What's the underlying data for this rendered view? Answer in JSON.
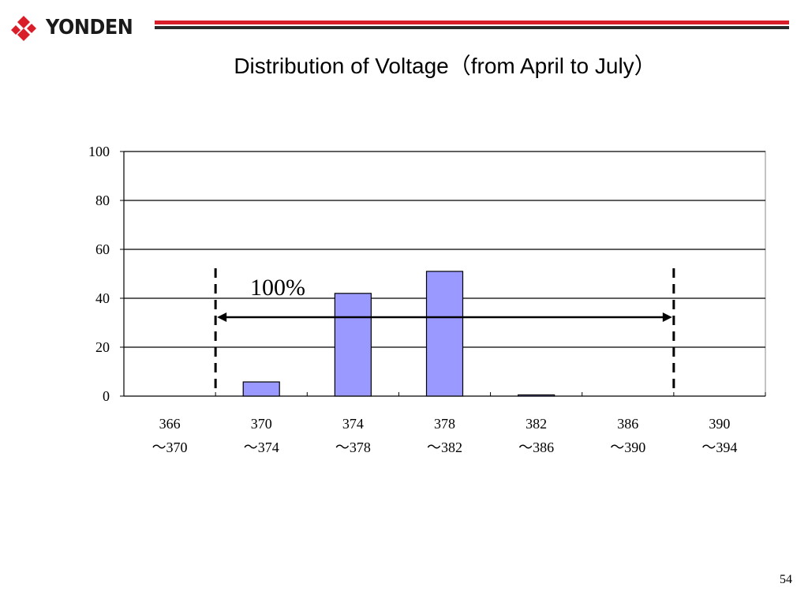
{
  "brand": {
    "name": "YONDEN",
    "logo_color": "#d91e2a",
    "header_bar_red": "#d91e2a",
    "header_bar_dark": "#2a2a2a"
  },
  "slide": {
    "title": "Distribution of Voltage（from April to July）",
    "page_number": "54"
  },
  "chart_data": {
    "type": "bar",
    "categories": [
      [
        "366",
        "～370"
      ],
      [
        "370",
        "～374"
      ],
      [
        "374",
        "～378"
      ],
      [
        "378",
        "～382"
      ],
      [
        "382",
        "～386"
      ],
      [
        "386",
        "～390"
      ],
      [
        "390",
        "～394"
      ]
    ],
    "values": [
      0,
      5.8,
      42,
      51,
      0.5,
      0,
      0
    ],
    "ylim": [
      0,
      100
    ],
    "yticks": [
      "0",
      "20",
      "40",
      "60",
      "80",
      "100"
    ],
    "grid": true,
    "bar_color": "#9999ff",
    "range_annotation": {
      "label": "100%",
      "from_boundary": 1,
      "to_boundary": 6
    }
  }
}
